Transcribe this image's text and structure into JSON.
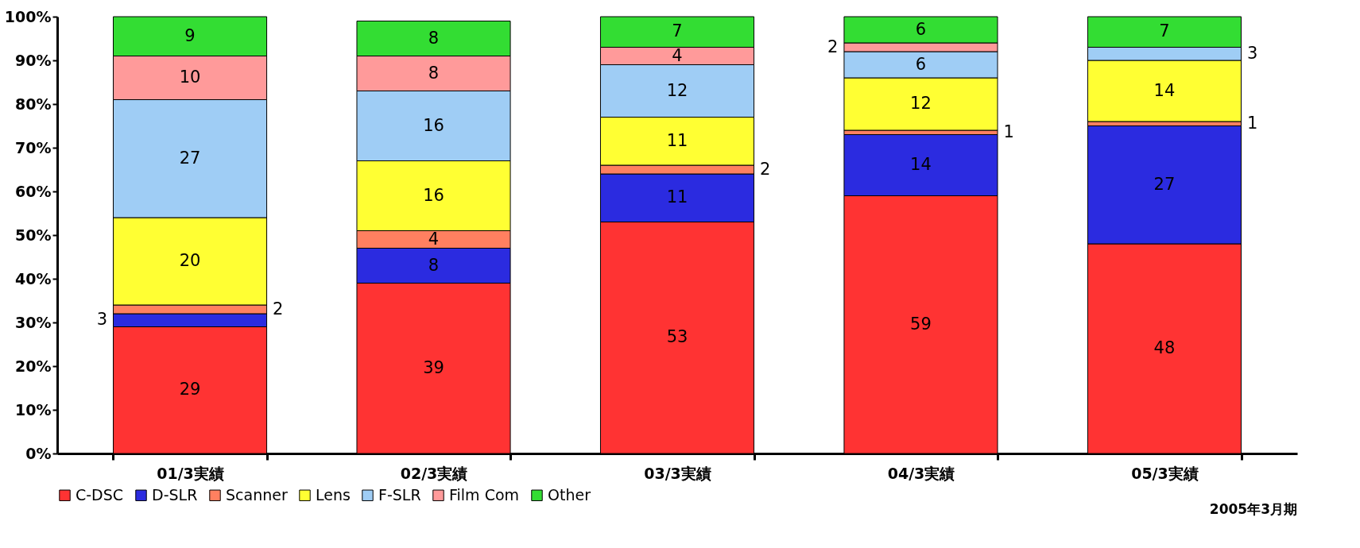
{
  "chart_data": {
    "type": "bar",
    "stacked": true,
    "categories": [
      "01/3実績",
      "02/3実績",
      "03/3実績",
      "04/3実績",
      "05/3実績"
    ],
    "series": [
      {
        "name": "C-DSC",
        "color": "#ff3333",
        "values": [
          29,
          39,
          53,
          59,
          48
        ]
      },
      {
        "name": "D-SLR",
        "color": "#2b2be0",
        "values": [
          3,
          8,
          11,
          14,
          27
        ]
      },
      {
        "name": "Scanner",
        "color": "#ff8060",
        "values": [
          2,
          4,
          2,
          1,
          1
        ]
      },
      {
        "name": "Lens",
        "color": "#ffff33",
        "values": [
          20,
          16,
          11,
          12,
          14
        ]
      },
      {
        "name": "F-SLR",
        "color": "#9fcdf5",
        "values": [
          27,
          16,
          12,
          6,
          3
        ]
      },
      {
        "name": "Film Com",
        "color": "#ff9a9a",
        "values": [
          10,
          8,
          4,
          2,
          null
        ]
      },
      {
        "name": "Other",
        "color": "#33dd33",
        "values": [
          9,
          8,
          7,
          6,
          7
        ]
      }
    ],
    "ylim": [
      0,
      100
    ],
    "yticks": [
      {
        "value": 0,
        "label": "0%"
      },
      {
        "value": 10,
        "label": "10%"
      },
      {
        "value": 20,
        "label": "20%"
      },
      {
        "value": 30,
        "label": "30%"
      },
      {
        "value": 40,
        "label": "40%"
      },
      {
        "value": 50,
        "label": "50%"
      },
      {
        "value": 60,
        "label": "60%"
      },
      {
        "value": 70,
        "label": "70%"
      },
      {
        "value": 80,
        "label": "80%"
      },
      {
        "value": 90,
        "label": "90%"
      },
      {
        "value": 100,
        "label": "100%"
      }
    ],
    "data_labels": true,
    "grid": false,
    "legend": "bottom left",
    "annotations": [
      "2005年3月期"
    ]
  }
}
